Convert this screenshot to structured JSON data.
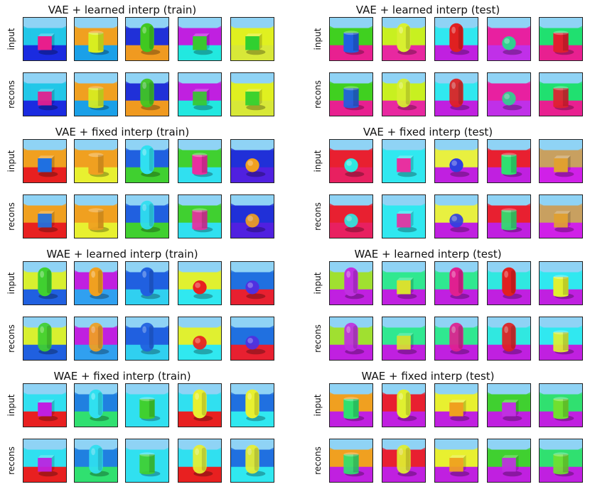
{
  "panels": [
    {
      "title": "VAE + learned interp (train)",
      "row_labels": [
        "input",
        "recons"
      ],
      "scenes": [
        {
          "sky": "#8fd3f5",
          "wall": "#22c7e8",
          "floor": "#1a2be0",
          "obj": "cube",
          "obj_color": "#e81e8c"
        },
        {
          "sky": "#8fd3f5",
          "wall": "#f0a020",
          "floor": "#1aa0e8",
          "obj": "cylinder",
          "obj_color": "#d8ee20"
        },
        {
          "sky": "#8fd3f5",
          "wall": "#2030d8",
          "floor": "#f09a20",
          "obj": "capsule",
          "obj_color": "#40c820"
        },
        {
          "sky": "#8fd3f5",
          "wall": "#c020e0",
          "floor": "#22e8e0",
          "obj": "cube",
          "obj_color": "#38c830"
        },
        {
          "sky": "#8fd3f5",
          "wall": "#e0f020",
          "floor": "#d8e838",
          "obj": "cube",
          "obj_color": "#30d030"
        }
      ]
    },
    {
      "title": "VAE + learned interp (test)",
      "row_labels": [
        "input",
        "recons"
      ],
      "scenes": [
        {
          "sky": "#8fd3f5",
          "wall": "#40d020",
          "floor": "#e82090",
          "obj": "cylinder",
          "obj_color": "#2060e0"
        },
        {
          "sky": "#8fd3f5",
          "wall": "#c8f020",
          "floor": "#e828a0",
          "obj": "capsule",
          "obj_color": "#d8f030"
        },
        {
          "sky": "#8fd3f5",
          "wall": "#30e8f0",
          "floor": "#c020e0",
          "obj": "capsule",
          "obj_color": "#e02020"
        },
        {
          "sky": "#8fd3f5",
          "wall": "#e820a0",
          "floor": "#c030e8",
          "obj": "sphere",
          "obj_color": "#30d090"
        },
        {
          "sky": "#8fd3f5",
          "wall": "#20e070",
          "floor": "#e82090",
          "obj": "cylinder",
          "obj_color": "#e02030"
        }
      ]
    },
    {
      "title": "VAE + fixed interp (train)",
      "row_labels": [
        "input",
        "recons"
      ],
      "scenes": [
        {
          "sky": "#8fd3f5",
          "wall": "#f0a020",
          "floor": "#e82020",
          "obj": "cube",
          "obj_color": "#2070e0"
        },
        {
          "sky": "#8fd3f5",
          "wall": "#f0a020",
          "floor": "#e8f030",
          "obj": "cylinder",
          "obj_color": "#f0a020"
        },
        {
          "sky": "#8fd3f5",
          "wall": "#2060e0",
          "floor": "#40d030",
          "obj": "capsule",
          "obj_color": "#30e0f0"
        },
        {
          "sky": "#8fd3f5",
          "wall": "#40d030",
          "floor": "#30e0f0",
          "obj": "cylinder",
          "obj_color": "#e830a0"
        },
        {
          "sky": "#8fd3f5",
          "wall": "#2030d8",
          "floor": "#5020e0",
          "obj": "sphere",
          "obj_color": "#f0a020"
        }
      ]
    },
    {
      "title": "VAE + fixed interp (test)",
      "row_labels": [
        "input",
        "recons"
      ],
      "scenes": [
        {
          "sky": "#8fd3f5",
          "wall": "#e82030",
          "floor": "#e82060",
          "obj": "sphere",
          "obj_color": "#30e8e0"
        },
        {
          "sky": "#8fd3f5",
          "wall": "#30e8f0",
          "floor": "#30e8f0",
          "obj": "cube",
          "obj_color": "#e830a0"
        },
        {
          "sky": "#8fd3f5",
          "wall": "#e8f040",
          "floor": "#c020e0",
          "obj": "sphere",
          "obj_color": "#3040e0"
        },
        {
          "sky": "#8fd3f5",
          "wall": "#e82030",
          "floor": "#c020e0",
          "obj": "cylinder",
          "obj_color": "#30e070"
        },
        {
          "sky": "#8fd3f5",
          "wall": "#c8a060",
          "floor": "#d020e8",
          "obj": "cube",
          "obj_color": "#e0a030"
        }
      ]
    },
    {
      "title": "WAE + learned interp (train)",
      "row_labels": [
        "input",
        "recons"
      ],
      "scenes": [
        {
          "sky": "#8fd3f5",
          "wall": "#d8f030",
          "floor": "#2060e0",
          "obj": "capsule",
          "obj_color": "#40d030"
        },
        {
          "sky": "#8fd3f5",
          "wall": "#c020e0",
          "floor": "#30a0f0",
          "obj": "capsule",
          "obj_color": "#f0a020"
        },
        {
          "sky": "#8fd3f5",
          "wall": "#2060e0",
          "floor": "#30d0f0",
          "obj": "capsule",
          "obj_color": "#2060e0"
        },
        {
          "sky": "#8fd3f5",
          "wall": "#e0f030",
          "floor": "#30e8f0",
          "obj": "sphere",
          "obj_color": "#e82020"
        },
        {
          "sky": "#8fd3f5",
          "wall": "#2070e0",
          "floor": "#e82030",
          "obj": "sphere",
          "obj_color": "#5030e0"
        }
      ]
    },
    {
      "title": "WAE + learned interp (test)",
      "row_labels": [
        "input",
        "recons"
      ],
      "scenes": [
        {
          "sky": "#8fd3f5",
          "wall": "#a0e030",
          "floor": "#c020e0",
          "obj": "capsule",
          "obj_color": "#c030e0"
        },
        {
          "sky": "#8fd3f5",
          "wall": "#30e890",
          "floor": "#c020e0",
          "obj": "cube",
          "obj_color": "#d8e030"
        },
        {
          "sky": "#8fd3f5",
          "wall": "#30e890",
          "floor": "#c020e0",
          "obj": "capsule",
          "obj_color": "#e02090"
        },
        {
          "sky": "#8fd3f5",
          "wall": "#30e8e0",
          "floor": "#c020e0",
          "obj": "capsule",
          "obj_color": "#e02020"
        },
        {
          "sky": "#8fd3f5",
          "wall": "#30e8f0",
          "floor": "#c020e0",
          "obj": "cylinder",
          "obj_color": "#e0f030"
        }
      ]
    },
    {
      "title": "WAE + fixed interp (train)",
      "row_labels": [
        "input",
        "recons"
      ],
      "scenes": [
        {
          "sky": "#8fd3f5",
          "wall": "#30e0f0",
          "floor": "#e82020",
          "obj": "cube",
          "obj_color": "#c020e0"
        },
        {
          "sky": "#8fd3f5",
          "wall": "#2080e0",
          "floor": "#30e070",
          "obj": "capsule",
          "obj_color": "#30e0f0"
        },
        {
          "sky": "#8fd3f5",
          "wall": "#30e0f0",
          "floor": "#30e0f0",
          "obj": "cylinder",
          "obj_color": "#40d030"
        },
        {
          "sky": "#8fd3f5",
          "wall": "#30e0f0",
          "floor": "#e82020",
          "obj": "capsule",
          "obj_color": "#e8f030"
        },
        {
          "sky": "#8fd3f5",
          "wall": "#2070e0",
          "floor": "#30e8f0",
          "obj": "capsule",
          "obj_color": "#e8f030"
        }
      ]
    },
    {
      "title": "WAE + fixed interp (test)",
      "row_labels": [
        "input",
        "recons"
      ],
      "scenes": [
        {
          "sky": "#8fd3f5",
          "wall": "#f0a020",
          "floor": "#c020e0",
          "obj": "cylinder",
          "obj_color": "#30e070"
        },
        {
          "sky": "#8fd3f5",
          "wall": "#e82030",
          "floor": "#c020e0",
          "obj": "capsule",
          "obj_color": "#e0f030"
        },
        {
          "sky": "#8fd3f5",
          "wall": "#e8f030",
          "floor": "#c020e0",
          "obj": "cube",
          "obj_color": "#f0a020"
        },
        {
          "sky": "#8fd3f5",
          "wall": "#40d030",
          "floor": "#c020e0",
          "obj": "cube",
          "obj_color": "#c030e0"
        },
        {
          "sky": "#8fd3f5",
          "wall": "#30e070",
          "floor": "#c020e0",
          "obj": "cylinder",
          "obj_color": "#70e030"
        }
      ]
    }
  ]
}
